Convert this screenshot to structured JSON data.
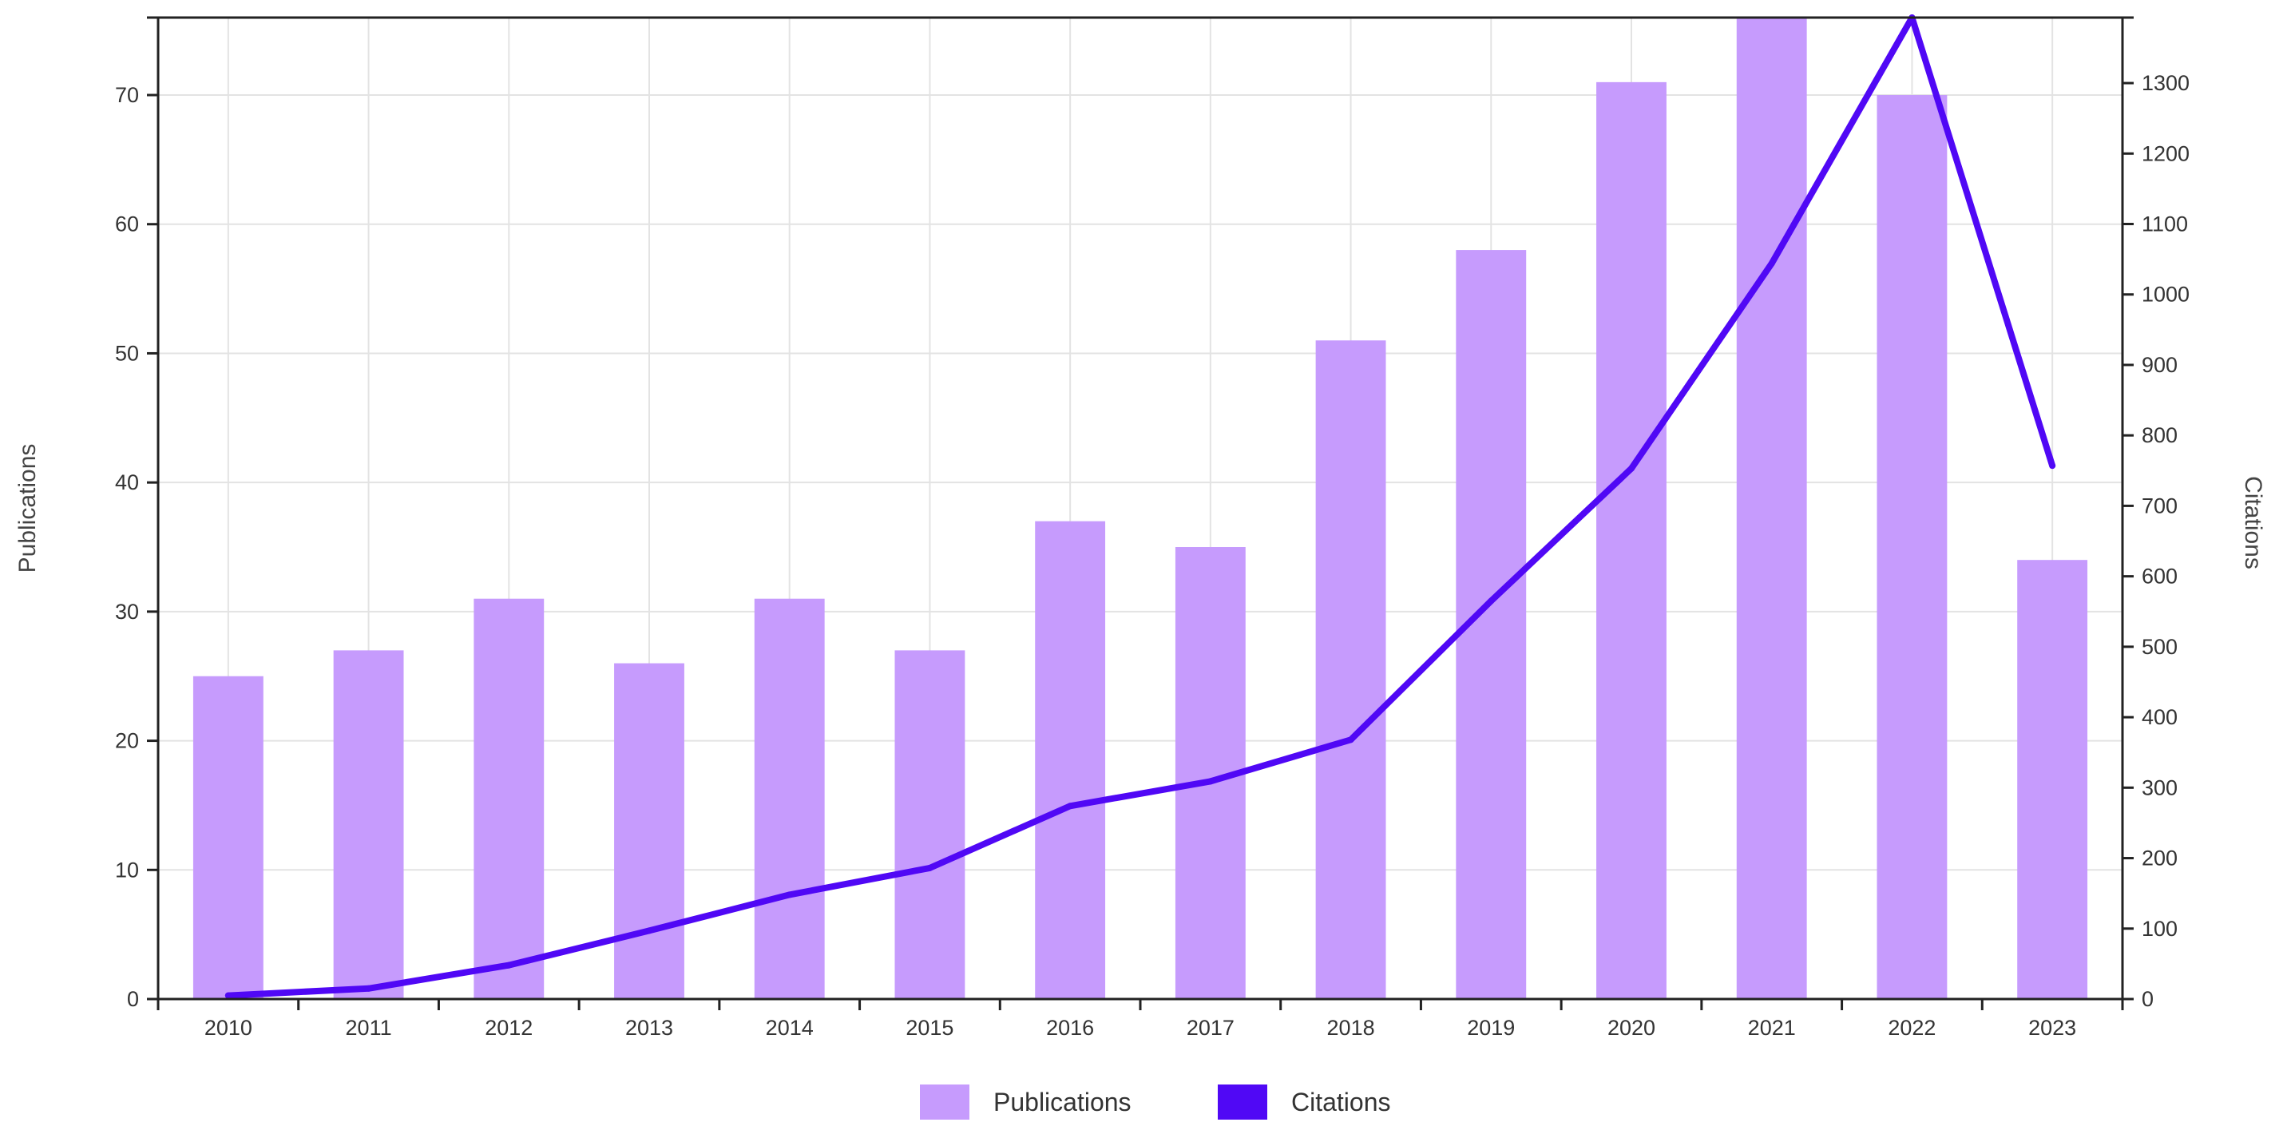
{
  "chart_data": {
    "type": "bar",
    "categories": [
      "2010",
      "2011",
      "2012",
      "2013",
      "2014",
      "2015",
      "2016",
      "2017",
      "2018",
      "2019",
      "2020",
      "2021",
      "2022",
      "2023"
    ],
    "series": [
      {
        "name": "Publications",
        "type": "bar",
        "axis": "left",
        "values": [
          25,
          27,
          31,
          26,
          31,
          27,
          37,
          35,
          51,
          58,
          71,
          76,
          70,
          34
        ]
      },
      {
        "name": "Citations",
        "type": "line",
        "axis": "right",
        "values": [
          5,
          15,
          48,
          97,
          148,
          186,
          274,
          309,
          368,
          565,
          753,
          1044,
          1393,
          757
        ]
      }
    ],
    "ylabel": "Publications",
    "y2label": "Citations",
    "ylim": [
      0,
      76
    ],
    "y2lim": [
      0,
      1393
    ],
    "yticks": [
      0,
      10,
      20,
      30,
      40,
      50,
      60,
      70
    ],
    "y2ticks": [
      0,
      100,
      200,
      300,
      400,
      500,
      600,
      700,
      800,
      900,
      1000,
      1100,
      1200,
      1300
    ],
    "grid": true,
    "legend_position": "bottom-center",
    "colors": {
      "Publications": "#c69bfd",
      "Citations": "#5008f5"
    }
  }
}
